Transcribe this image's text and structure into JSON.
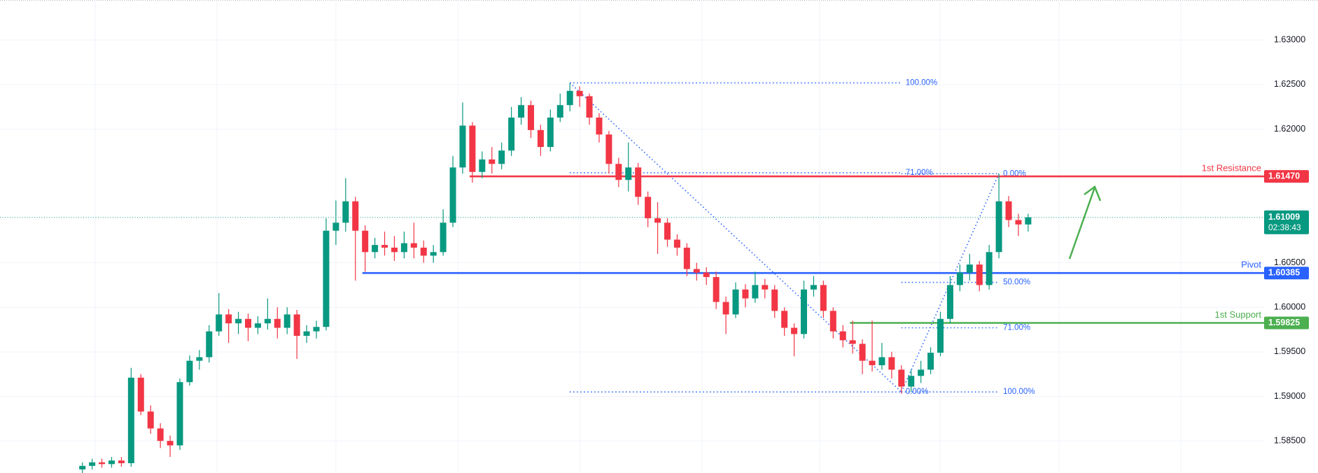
{
  "chart_data": {
    "type": "candlestick",
    "ylim": [
      1.5814,
      1.6345
    ],
    "yticks": [
      {
        "value": 1.585,
        "label": "1.58500"
      },
      {
        "value": 1.59,
        "label": "1.59000"
      },
      {
        "value": 1.595,
        "label": "1.59500"
      },
      {
        "value": 1.6,
        "label": "1.60000"
      },
      {
        "value": 1.605,
        "label": "1.60500"
      },
      {
        "value": 1.62,
        "label": "1.62000"
      },
      {
        "value": 1.625,
        "label": "1.62500"
      },
      {
        "value": 1.63,
        "label": "1.63000"
      }
    ],
    "grid": true,
    "up_color": "#089981",
    "down_color": "#f23645",
    "open": [
      1.5818,
      1.5822,
      1.5826,
      1.5824,
      1.5828,
      1.5825,
      1.5921,
      1.5883,
      1.5864,
      1.585,
      1.5845,
      1.5916,
      1.594,
      1.5944,
      1.5973,
      1.5992,
      1.5982,
      1.5987,
      1.5977,
      1.5982,
      1.5987,
      1.5977,
      1.5992,
      1.5968,
      1.5973,
      1.5978,
      1.6086,
      1.6095,
      1.6119,
      1.6086,
      1.6062,
      1.607,
      1.6067,
      1.6062,
      1.6072,
      1.6067,
      1.6058,
      1.6062,
      1.6095,
      1.6157,
      1.6204,
      1.6152,
      1.6166,
      1.6161,
      1.6176,
      1.6213,
      1.6227,
      1.6199,
      1.618,
      1.6213,
      1.6227,
      1.6243,
      1.6237,
      1.6213,
      1.6194,
      1.6161,
      1.6143,
      1.6157,
      1.6124,
      1.61,
      1.6095,
      1.6076,
      1.6067,
      1.6043,
      1.6039,
      1.6034,
      1.6006,
      1.5992,
      1.602,
      1.601,
      1.6025,
      1.602,
      1.5996,
      1.5977,
      1.597,
      1.602,
      1.6025,
      1.5996,
      1.5973,
      1.5963,
      1.5959,
      1.594,
      1.5935,
      1.5944,
      1.593,
      1.5911,
      1.5923,
      1.593,
      1.5949,
      1.5987,
      1.6025,
      1.6039,
      1.6048,
      1.6025,
      1.6062,
      1.6119,
      1.6098,
      1.6093
    ],
    "high": [
      1.5826,
      1.583,
      1.583,
      1.5832,
      1.5832,
      1.5932,
      1.5925,
      1.589,
      1.587,
      1.5856,
      1.592,
      1.5946,
      1.5952,
      1.598,
      1.6016,
      1.5998,
      1.5995,
      1.5993,
      1.599,
      1.601,
      1.6,
      1.6,
      1.5997,
      1.598,
      1.5985,
      1.61,
      1.612,
      1.6145,
      1.6124,
      1.6092,
      1.6078,
      1.6085,
      1.608,
      1.6085,
      1.6095,
      1.6075,
      1.607,
      1.611,
      1.617,
      1.623,
      1.6208,
      1.6175,
      1.618,
      1.6185,
      1.6225,
      1.6236,
      1.6232,
      1.6205,
      1.6222,
      1.624,
      1.6252,
      1.6248,
      1.624,
      1.6218,
      1.6198,
      1.6168,
      1.6185,
      1.6162,
      1.613,
      1.6118,
      1.61,
      1.6082,
      1.6072,
      1.605,
      1.6045,
      1.604,
      1.6012,
      1.6028,
      1.6026,
      1.604,
      1.6032,
      1.6025,
      1.6,
      1.5982,
      1.603,
      1.6035,
      1.603,
      1.6,
      1.598,
      1.5985,
      1.5964,
      1.5985,
      1.596,
      1.595,
      1.5935,
      1.593,
      1.594,
      1.5955,
      1.5995,
      1.6035,
      1.6048,
      1.606,
      1.6052,
      1.607,
      1.615,
      1.6125,
      1.6105,
      1.6105
    ],
    "low": [
      1.5814,
      1.5818,
      1.582,
      1.582,
      1.5821,
      1.5821,
      1.5879,
      1.5858,
      1.5842,
      1.5832,
      1.584,
      1.5912,
      1.593,
      1.5938,
      1.5968,
      1.596,
      1.597,
      1.5962,
      1.597,
      1.5975,
      1.5965,
      1.597,
      1.5942,
      1.596,
      1.5965,
      1.5974,
      1.607,
      1.6085,
      1.603,
      1.604,
      1.6055,
      1.6058,
      1.6052,
      1.6055,
      1.6055,
      1.605,
      1.605,
      1.6058,
      1.609,
      1.615,
      1.614,
      1.6145,
      1.615,
      1.6155,
      1.617,
      1.6205,
      1.619,
      1.617,
      1.6175,
      1.6208,
      1.622,
      1.6225,
      1.6205,
      1.6185,
      1.615,
      1.6135,
      1.613,
      1.6115,
      1.609,
      1.606,
      1.6068,
      1.6058,
      1.6035,
      1.603,
      1.6025,
      1.5998,
      1.597,
      1.5988,
      1.6,
      1.6005,
      1.601,
      1.5988,
      1.5968,
      1.5945,
      1.5965,
      1.6012,
      1.5988,
      1.5965,
      1.5955,
      1.5948,
      1.5925,
      1.5928,
      1.593,
      1.592,
      1.5903,
      1.5905,
      1.5915,
      1.5925,
      1.5945,
      1.5982,
      1.6018,
      1.603,
      1.6018,
      1.602,
      1.6055,
      1.609,
      1.608,
      1.6085
    ],
    "close": [
      1.5822,
      1.5826,
      1.5824,
      1.5828,
      1.5825,
      1.5921,
      1.5883,
      1.5864,
      1.585,
      1.5845,
      1.5916,
      1.594,
      1.5944,
      1.5973,
      1.5992,
      1.5982,
      1.5987,
      1.5977,
      1.5982,
      1.5987,
      1.5977,
      1.5992,
      1.5968,
      1.5973,
      1.5978,
      1.6086,
      1.6095,
      1.6119,
      1.6086,
      1.6062,
      1.607,
      1.6067,
      1.6062,
      1.6072,
      1.6067,
      1.6058,
      1.6062,
      1.6095,
      1.6157,
      1.6204,
      1.6152,
      1.6166,
      1.6161,
      1.6176,
      1.6213,
      1.6227,
      1.6199,
      1.618,
      1.6213,
      1.6227,
      1.6243,
      1.6237,
      1.6213,
      1.6194,
      1.6161,
      1.6143,
      1.6157,
      1.6124,
      1.61,
      1.6095,
      1.6076,
      1.6067,
      1.6043,
      1.6039,
      1.6034,
      1.6006,
      1.5992,
      1.602,
      1.601,
      1.6025,
      1.602,
      1.5996,
      1.5977,
      1.597,
      1.602,
      1.6025,
      1.5996,
      1.5973,
      1.5963,
      1.5959,
      1.594,
      1.5935,
      1.5944,
      1.593,
      1.5911,
      1.5923,
      1.593,
      1.5949,
      1.5987,
      1.6025,
      1.6039,
      1.6048,
      1.6025,
      1.6062,
      1.6119,
      1.6098,
      1.6093,
      1.6101
    ],
    "last_price": {
      "value": 1.61009,
      "countdown": "02:38:43",
      "color": "#089981"
    },
    "levels": [
      {
        "name": "1st Resistance",
        "value": 1.6147,
        "value_label": "1.61470",
        "color": "#f23645",
        "start": 40
      },
      {
        "name": "Pivot",
        "value": 1.60385,
        "value_label": "1.60385",
        "color": "#2962ff",
        "start": 29
      },
      {
        "name": "1st Support",
        "value": 1.59825,
        "value_label": "1.59825",
        "color": "#4caf50",
        "start": 79
      }
    ],
    "fibs": [
      {
        "color": "#2962ff",
        "from": {
          "index": 50,
          "price": 1.6252
        },
        "to": {
          "index": 84,
          "price": 1.5905
        },
        "lines": [
          {
            "label": "100.00%",
            "price": 1.6252
          },
          {
            "label": "71.00%",
            "price": 1.6151
          },
          {
            "label": "0.00%",
            "price": 1.5905
          }
        ]
      },
      {
        "color": "#2962ff",
        "from": {
          "index": 84,
          "price": 1.5905
        },
        "to": {
          "index": 94,
          "price": 1.615
        },
        "lines": [
          {
            "label": "0.00%",
            "price": 1.615
          },
          {
            "label": "50.00%",
            "price": 1.6028
          },
          {
            "label": "71.00%",
            "price": 1.5977
          },
          {
            "label": "100.00%",
            "price": 1.5905
          }
        ]
      }
    ]
  }
}
